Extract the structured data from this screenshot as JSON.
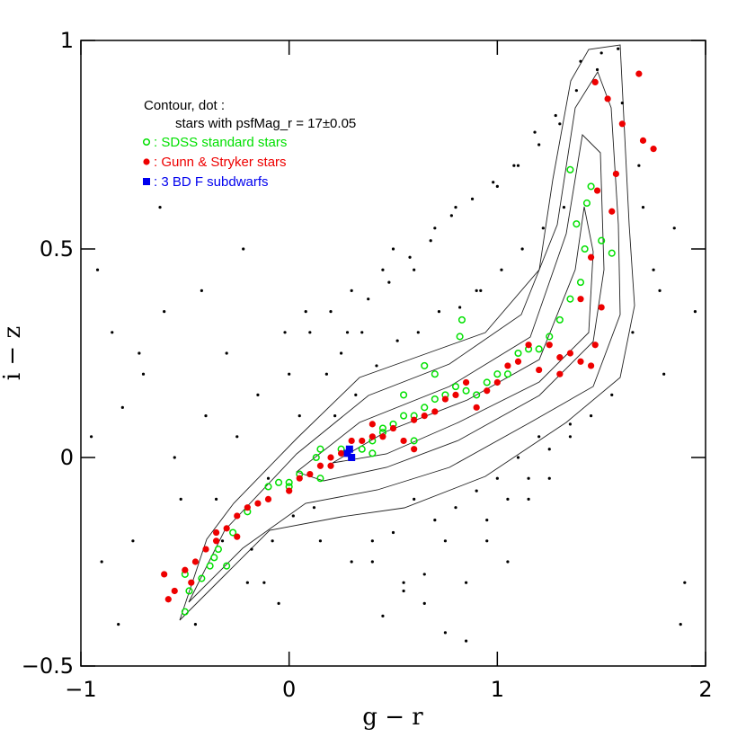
{
  "chart_data": {
    "type": "scatter",
    "x_label": "g − r",
    "y_label": "i − z",
    "xlim": [
      -1,
      2
    ],
    "ylim": [
      -0.5,
      1
    ],
    "xticks": [
      {
        "value": -1,
        "label": "−1"
      },
      0,
      1,
      2
    ],
    "yticks": [
      {
        "value": -0.5,
        "label": "−0.5"
      },
      0,
      0.5,
      1
    ],
    "legend_heading": [
      "Contour, dot :",
      "stars with psfMag_r = 17±0.05"
    ],
    "legend": "upper left",
    "series": [
      {
        "color": "#000000",
        "marker": "dot",
        "x": [
          -0.95,
          -0.9,
          -0.85,
          -0.8,
          -0.75,
          -0.7,
          -0.6,
          -0.55,
          -0.45,
          -0.4,
          -0.35,
          -0.3,
          -0.25,
          -0.2,
          -0.15,
          -0.1,
          -0.05,
          0.0,
          0.05,
          0.1,
          0.15,
          0.2,
          0.25,
          0.3,
          0.35,
          0.4,
          0.45,
          0.5,
          0.55,
          0.6,
          0.65,
          0.7,
          0.75,
          0.8,
          0.85,
          0.9,
          0.95,
          1.0,
          1.05,
          1.1,
          1.15,
          1.2,
          1.25,
          1.3,
          1.35,
          1.4,
          1.45,
          1.5,
          1.55,
          1.6,
          1.65,
          1.7,
          1.75,
          1.8,
          1.85,
          1.9,
          1.95,
          -0.92,
          -0.82,
          -0.72,
          -0.62,
          -0.52,
          -0.42,
          -0.32,
          -0.22,
          -0.12,
          -0.02,
          0.08,
          0.18,
          0.28,
          0.38,
          0.48,
          0.58,
          0.68,
          0.78,
          0.88,
          0.98,
          1.08,
          1.18,
          1.28,
          1.38,
          1.48,
          1.58,
          1.68,
          1.78,
          1.88,
          0.22,
          0.32,
          0.42,
          0.52,
          0.62,
          0.72,
          0.82,
          0.92,
          1.02,
          1.12,
          1.22,
          1.32,
          0.12,
          0.02,
          -0.08,
          -0.18,
          0.6,
          0.7,
          0.8,
          0.9,
          1.0,
          0.5,
          0.4,
          0.3,
          1.1,
          1.2,
          0.65,
          0.55,
          0.45,
          0.75,
          0.85,
          0.95,
          1.05,
          1.15,
          1.25,
          1.35
        ],
        "values": [
          0.05,
          -0.25,
          0.3,
          0.12,
          -0.2,
          0.2,
          0.35,
          0.0,
          -0.4,
          0.1,
          -0.1,
          0.25,
          0.05,
          -0.3,
          0.15,
          -0.05,
          -0.35,
          0.2,
          0.1,
          0.3,
          -0.2,
          0.35,
          0.25,
          0.4,
          0.3,
          -0.25,
          0.45,
          0.5,
          -0.3,
          0.45,
          -0.35,
          0.55,
          -0.2,
          0.6,
          -0.3,
          0.4,
          -0.15,
          0.65,
          -0.25,
          0.7,
          -0.1,
          0.75,
          -0.05,
          0.8,
          0.05,
          0.95,
          0.1,
          0.97,
          0.15,
          0.85,
          0.3,
          0.6,
          0.45,
          0.2,
          0.55,
          -0.3,
          0.35,
          0.45,
          -0.4,
          0.25,
          0.6,
          -0.1,
          0.4,
          -0.2,
          0.5,
          -0.3,
          0.3,
          0.35,
          0.2,
          0.3,
          0.38,
          0.42,
          0.48,
          0.52,
          0.58,
          0.62,
          0.66,
          0.7,
          0.78,
          0.82,
          0.88,
          0.93,
          0.98,
          0.7,
          0.4,
          -0.4,
          0.1,
          0.15,
          0.22,
          0.28,
          0.3,
          0.35,
          0.36,
          0.4,
          0.45,
          0.5,
          0.55,
          0.6,
          -0.12,
          -0.14,
          -0.2,
          -0.22,
          -0.1,
          -0.15,
          -0.12,
          -0.08,
          -0.05,
          -0.18,
          -0.2,
          -0.25,
          0.0,
          0.05,
          -0.28,
          -0.32,
          -0.38,
          -0.42,
          -0.44,
          -0.2,
          -0.1,
          -0.05,
          0.02,
          0.08
        ]
      },
      {
        "name": ": SDSS standard stars",
        "color": "#00e000",
        "marker": "open-circle",
        "x": [
          -0.5,
          -0.48,
          -0.5,
          -0.42,
          -0.38,
          -0.36,
          -0.3,
          -0.34,
          -0.27,
          -0.05,
          0,
          0.05,
          0.13,
          0.15,
          0.25,
          0.3,
          0.35,
          0.4,
          0.45,
          0.5,
          0.55,
          0.6,
          0.65,
          0.7,
          0.75,
          0.8,
          0.85,
          0.9,
          0.95,
          1.0,
          1.05,
          1.1,
          1.15,
          1.2,
          1.25,
          1.3,
          1.35,
          1.4,
          1.42,
          1.43,
          1.38,
          1.35,
          1.45,
          1.5,
          1.55,
          0.83,
          0.82,
          0.65,
          0.7,
          0.55,
          0.45,
          0.4,
          0.6,
          0.15,
          0.0,
          -0.1,
          -0.2
        ],
        "values": [
          -0.37,
          -0.32,
          -0.28,
          -0.29,
          -0.26,
          -0.24,
          -0.26,
          -0.22,
          -0.18,
          -0.06,
          -0.06,
          -0.04,
          0.0,
          0.02,
          0.02,
          0.0,
          0.02,
          0.04,
          0.06,
          0.08,
          0.1,
          0.1,
          0.12,
          0.14,
          0.15,
          0.17,
          0.16,
          0.15,
          0.18,
          0.2,
          0.2,
          0.25,
          0.26,
          0.26,
          0.29,
          0.33,
          0.38,
          0.42,
          0.5,
          0.61,
          0.56,
          0.69,
          0.65,
          0.52,
          0.49,
          0.33,
          0.29,
          0.22,
          0.2,
          0.15,
          0.07,
          0.01,
          0.04,
          -0.05,
          -0.07,
          -0.07,
          -0.13
        ]
      },
      {
        "name": ": Gunn & Stryker stars",
        "color": "#ee0000",
        "marker": "filled-circle",
        "x": [
          -0.6,
          -0.58,
          -0.5,
          -0.47,
          -0.45,
          -0.4,
          -0.35,
          -0.3,
          -0.25,
          -0.2,
          -0.15,
          -0.1,
          0.0,
          0.05,
          0.1,
          0.15,
          0.2,
          0.25,
          0.3,
          0.35,
          0.4,
          0.45,
          0.5,
          0.55,
          0.6,
          0.65,
          0.7,
          0.75,
          0.8,
          0.85,
          0.9,
          0.95,
          1.0,
          1.05,
          1.1,
          1.15,
          1.2,
          1.25,
          1.3,
          1.35,
          1.4,
          1.45,
          1.47,
          1.5,
          1.4,
          1.45,
          1.55,
          1.57,
          1.53,
          1.6,
          1.68,
          1.7,
          1.75,
          1.47,
          1.48,
          1.3,
          0.6,
          0.4,
          0.2,
          -0.55,
          -0.35,
          -0.25
        ],
        "values": [
          -0.28,
          -0.34,
          -0.27,
          -0.3,
          -0.25,
          -0.22,
          -0.2,
          -0.17,
          -0.14,
          -0.12,
          -0.11,
          -0.1,
          -0.08,
          -0.05,
          -0.04,
          -0.02,
          0.0,
          0.01,
          0.04,
          0.04,
          0.05,
          0.05,
          0.07,
          0.04,
          0.09,
          0.1,
          0.11,
          0.14,
          0.15,
          0.18,
          0.12,
          0.16,
          0.18,
          0.22,
          0.23,
          0.27,
          0.21,
          0.27,
          0.2,
          0.25,
          0.23,
          0.22,
          0.27,
          0.36,
          0.38,
          0.48,
          0.59,
          0.68,
          0.86,
          0.8,
          0.92,
          0.76,
          0.74,
          0.9,
          0.64,
          0.24,
          0.02,
          0.08,
          -0.02,
          -0.32,
          -0.18,
          -0.19
        ]
      },
      {
        "name": ": 3 BD F subdwarfs",
        "color": "#0000ee",
        "marker": "square",
        "x": [
          0.28,
          0.29,
          0.3
        ],
        "values": [
          0.01,
          0.02,
          0.0
        ]
      }
    ]
  }
}
